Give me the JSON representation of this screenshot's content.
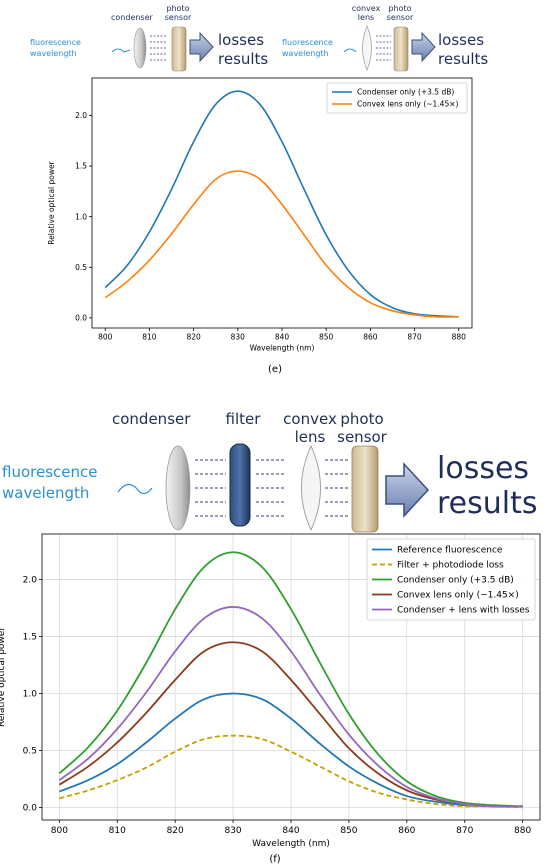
{
  "panel_e": {
    "caption": "(e)",
    "diagram_left": {
      "labels": [
        "condenser",
        "photo",
        "sensor"
      ],
      "input_label": [
        "fluorescence",
        "wavelength"
      ],
      "output_label": [
        "losses",
        "results"
      ]
    },
    "diagram_right": {
      "labels": [
        "convex",
        "lens",
        "photo",
        "sensor"
      ],
      "input_label": [
        "fluorescence",
        "wavelength"
      ],
      "output_label": [
        "losses",
        "results"
      ]
    }
  },
  "panel_f": {
    "caption": "(f)",
    "diagram": {
      "labels": [
        "condenser",
        "filter",
        "convex",
        "lens",
        "photo",
        "sensor"
      ],
      "input_label": [
        "fluorescence",
        "wavelength"
      ],
      "output_label": [
        "losses",
        "results"
      ]
    }
  },
  "chart_data": [
    {
      "type": "line",
      "xlabel": "Wavelength (nm)",
      "ylabel": "Relative optical power",
      "xlim": [
        797,
        883
      ],
      "ylim": [
        -0.1,
        2.37
      ],
      "xticks": [
        800,
        810,
        820,
        830,
        840,
        850,
        860,
        870,
        880
      ],
      "yticks": [
        0.0,
        0.5,
        1.0,
        1.5,
        2.0
      ],
      "grid": false,
      "legend": "top-right",
      "x": [
        800,
        805,
        810,
        815,
        820,
        825,
        830,
        835,
        840,
        845,
        850,
        855,
        860,
        865,
        870,
        875,
        880
      ],
      "series": [
        {
          "name": "Condenser only (+3.5 dB)",
          "color": "#1f77b4",
          "values": [
            0.3,
            0.52,
            0.85,
            1.27,
            1.74,
            2.11,
            2.24,
            2.11,
            1.74,
            1.27,
            0.82,
            0.47,
            0.23,
            0.1,
            0.04,
            0.02,
            0.01
          ]
        },
        {
          "name": "Convex lens only (~1.45×)",
          "color": "#ff7f0e",
          "values": [
            0.2,
            0.36,
            0.57,
            0.83,
            1.12,
            1.37,
            1.45,
            1.37,
            1.12,
            0.82,
            0.52,
            0.3,
            0.15,
            0.07,
            0.03,
            0.01,
            0.01
          ]
        }
      ]
    },
    {
      "type": "line",
      "xlabel": "Wavelength (nm)",
      "ylabel": "Relative optical power",
      "xlim": [
        797,
        883
      ],
      "ylim": [
        -0.11,
        2.4
      ],
      "xticks": [
        800,
        810,
        820,
        830,
        840,
        850,
        860,
        870,
        880
      ],
      "yticks": [
        0.0,
        0.5,
        1.0,
        1.5,
        2.0
      ],
      "grid": true,
      "legend": "top-right",
      "x": [
        800,
        805,
        810,
        815,
        820,
        825,
        830,
        835,
        840,
        845,
        850,
        855,
        860,
        865,
        870,
        875,
        880
      ],
      "series": [
        {
          "name": "Reference fluorescence",
          "color": "#1f77b4",
          "dash": false,
          "values": [
            0.14,
            0.24,
            0.38,
            0.57,
            0.78,
            0.95,
            1.0,
            0.95,
            0.78,
            0.56,
            0.36,
            0.21,
            0.1,
            0.05,
            0.02,
            0.01,
            0.01
          ]
        },
        {
          "name": "Filter + photodiode loss",
          "color": "#c8a000",
          "dash": true,
          "values": [
            0.08,
            0.15,
            0.24,
            0.35,
            0.49,
            0.6,
            0.63,
            0.6,
            0.49,
            0.36,
            0.23,
            0.13,
            0.07,
            0.03,
            0.01,
            0.01,
            0.0
          ]
        },
        {
          "name": "Condenser only (+3.5 dB)",
          "color": "#2ca02c",
          "dash": false,
          "values": [
            0.3,
            0.53,
            0.85,
            1.27,
            1.74,
            2.11,
            2.24,
            2.11,
            1.74,
            1.27,
            0.82,
            0.47,
            0.23,
            0.1,
            0.04,
            0.02,
            0.01
          ]
        },
        {
          "name": "Convex lens only (~1.45×)",
          "color": "#8c3a1a",
          "dash": false,
          "values": [
            0.2,
            0.36,
            0.57,
            0.83,
            1.12,
            1.37,
            1.45,
            1.37,
            1.12,
            0.82,
            0.52,
            0.3,
            0.15,
            0.07,
            0.03,
            0.01,
            0.01
          ]
        },
        {
          "name": "Condenser + lens with losses",
          "color": "#9467bd",
          "dash": false,
          "values": [
            0.24,
            0.43,
            0.69,
            1.01,
            1.37,
            1.66,
            1.76,
            1.66,
            1.37,
            0.99,
            0.64,
            0.37,
            0.18,
            0.08,
            0.03,
            0.01,
            0.01
          ]
        }
      ]
    }
  ]
}
